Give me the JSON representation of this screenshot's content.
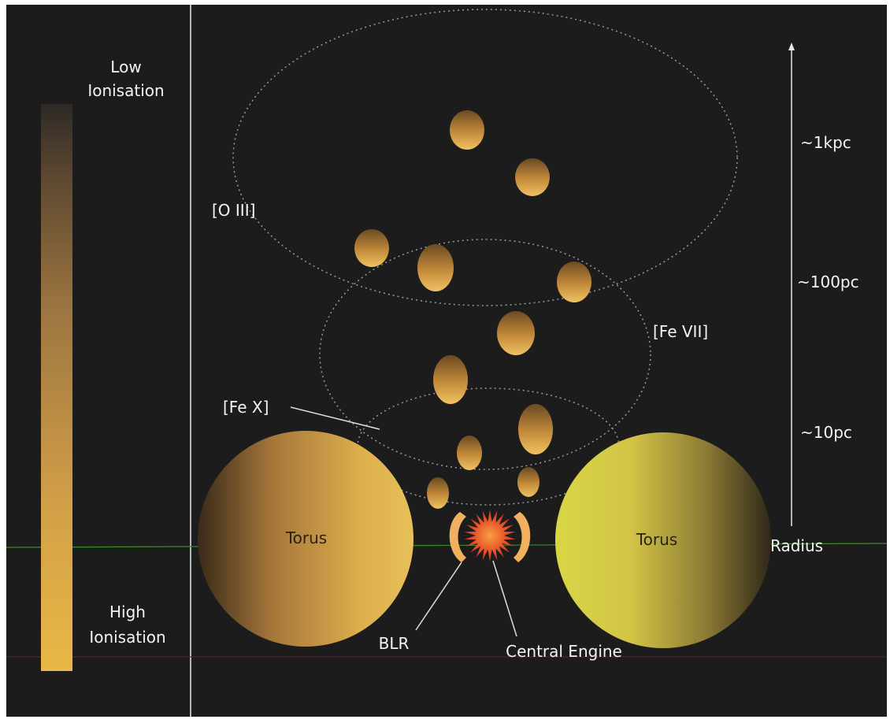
{
  "colorbar": {
    "top_label_line1": "Low",
    "top_label_line2": "Ionisation",
    "bottom_label_line1": "High",
    "bottom_label_line2": "Ionisation",
    "color_low": "#2e2a26",
    "color_high": "#e6b545"
  },
  "regions": {
    "oiii": "[O III]",
    "fevii": "[Fe VII]",
    "fex": "[Fe X]"
  },
  "torus": {
    "left_label": "Torus",
    "right_label": "Torus",
    "left_color": "#dcae4c",
    "right_color": "#d6d445"
  },
  "core": {
    "blr_label": "BLR",
    "engine_label": "Central Engine",
    "engine_color": "#e8542a",
    "blr_color": "#f0b060"
  },
  "scale": {
    "kpc": "~1kpc",
    "pc100": "~100pc",
    "pc10": "~10pc",
    "axis_label": "Radius"
  },
  "colors": {
    "background": "#1c1c1c",
    "cloud_top": "#f0c060",
    "cloud_bottom": "#5a4020"
  }
}
